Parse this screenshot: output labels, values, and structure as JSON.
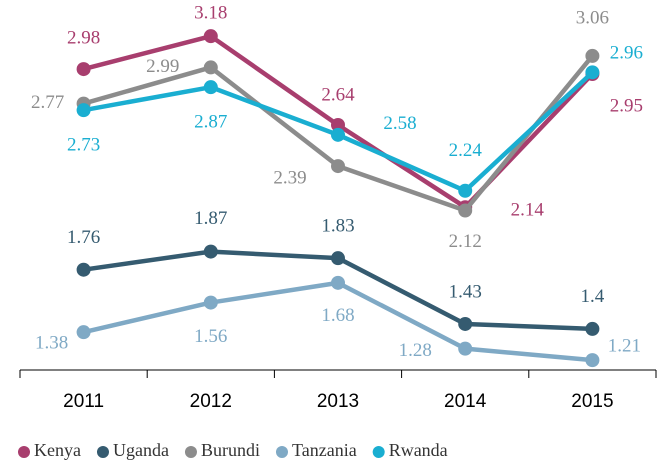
{
  "chart_data": {
    "type": "line",
    "categories": [
      "2011",
      "2012",
      "2013",
      "2014",
      "2015"
    ],
    "series": [
      {
        "name": "Kenya",
        "color": "#a83e6e",
        "values": [
          2.98,
          3.18,
          2.64,
          2.14,
          2.95
        ]
      },
      {
        "name": "Uganda",
        "color": "#355b70",
        "values": [
          1.76,
          1.87,
          1.83,
          1.43,
          1.4
        ]
      },
      {
        "name": "Burundi",
        "color": "#8c8c8c",
        "values": [
          2.77,
          2.99,
          2.39,
          2.12,
          3.06
        ]
      },
      {
        "name": "Tanzania",
        "color": "#7fa9c5",
        "values": [
          1.38,
          1.56,
          1.68,
          1.28,
          1.21
        ]
      },
      {
        "name": "Rwanda",
        "color": "#1aaed1",
        "values": [
          2.73,
          2.87,
          2.58,
          2.24,
          2.96
        ]
      }
    ],
    "ylim": [
      1.15,
      3.4
    ],
    "legend": "bottom"
  }
}
